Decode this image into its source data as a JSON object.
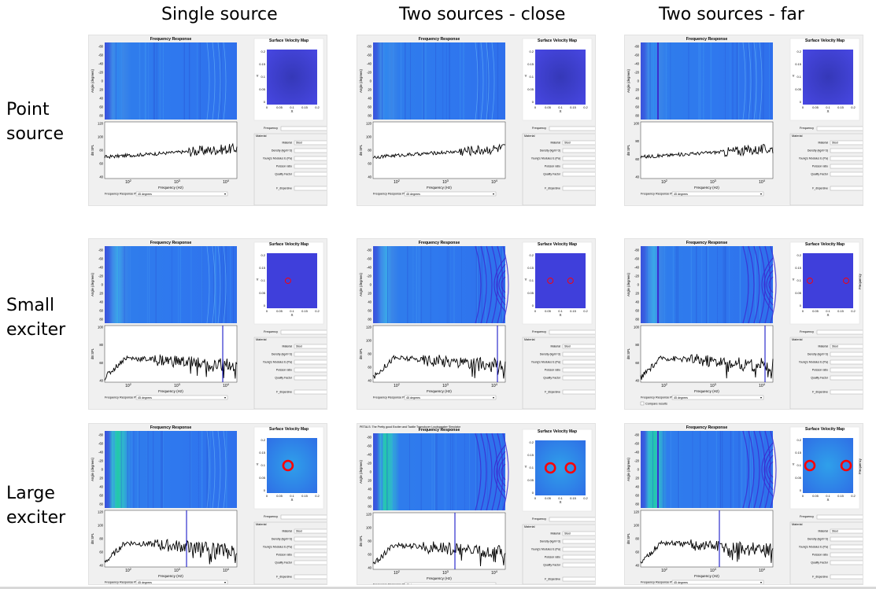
{
  "columns": [
    "Single source",
    "Two sources - close",
    "Two sources - far"
  ],
  "rows": [
    {
      "line1": "Point",
      "line2": "source"
    },
    {
      "line1": "Small",
      "line2": "exciter"
    },
    {
      "line1": "Large",
      "line2": "exciter"
    }
  ],
  "panel_labels": {
    "frequency_response": "Frequency Response",
    "surface_velocity_map": "Surface Velocity Map",
    "angle_axis": "Angle (degrees)",
    "spl_axis": "dB SPL",
    "freq_axis": "Frequency (Hz)",
    "x_axis": "X",
    "y_axis": "Y",
    "frequency_field": "Frequency",
    "frequency_side": "Frequency",
    "material_group": "Material",
    "material_label": "Material",
    "material_value": "Steel",
    "density": "Density (kg/m^3)",
    "youngs": "Young's Modulus E (Pa)",
    "poisson": "Poisson ratio",
    "quality": "Quality Factor",
    "f_dispersive": "F_dispersive",
    "response_plot_label": "Frequency Response Plot",
    "response_plot_value": "45 degrees",
    "compare_results": "Compare results",
    "window_title": "PETALS: The Pretty good Exciter and Tactile Transducer Loudspeaker Simulator"
  },
  "ticks": {
    "angle": [
      "-80",
      "-60",
      "-40",
      "-20",
      "0",
      "20",
      "40",
      "60",
      "80"
    ],
    "spl_a": [
      "120",
      "100",
      "80",
      "60",
      "40"
    ],
    "spl_b": [
      "100",
      "80",
      "60",
      "40"
    ],
    "freq": [
      "10^2",
      "10^3",
      "10^4"
    ],
    "x": [
      "0",
      "0.05",
      "0.1",
      "0.15",
      "0.2"
    ],
    "y": [
      "0.2",
      "0.15",
      "0.1",
      "0.05",
      "0"
    ]
  },
  "panels": [
    {
      "row": 0,
      "col": 0,
      "exciters": 0,
      "marker": false,
      "rings": false,
      "spl": "spl_a"
    },
    {
      "row": 0,
      "col": 1,
      "exciters": 0,
      "marker": false,
      "rings": false,
      "spl": "spl_a"
    },
    {
      "row": 0,
      "col": 2,
      "exciters": 0,
      "marker": false,
      "rings": false,
      "spl": "spl_b"
    },
    {
      "row": 1,
      "col": 0,
      "exciters": 1,
      "marker": true,
      "rings": false,
      "spl": "spl_b"
    },
    {
      "row": 1,
      "col": 1,
      "exciters": 2,
      "marker": true,
      "rings": true,
      "spl": "spl_a"
    },
    {
      "row": 1,
      "col": 2,
      "exciters": 2,
      "marker": true,
      "rings": true,
      "spl": "spl_b"
    },
    {
      "row": 2,
      "col": 0,
      "exciters": 1,
      "marker": true,
      "rings": false,
      "spl": "spl_a",
      "big": true
    },
    {
      "row": 2,
      "col": 1,
      "exciters": 2,
      "marker": true,
      "rings": true,
      "spl": "spl_a",
      "big": true,
      "window_title": true
    },
    {
      "row": 2,
      "col": 2,
      "exciters": 2,
      "marker": true,
      "rings": true,
      "spl": "spl_a",
      "big": true
    }
  ],
  "colors": {
    "heatmap": "#2f74ee",
    "heatmap_dark": "#3a3fd6",
    "map_bg": "#3f3fdb",
    "ring": "#ff0000",
    "marker": "#1a1ac8",
    "curve": "#000000",
    "panel_bg": "#f0f0f0"
  }
}
